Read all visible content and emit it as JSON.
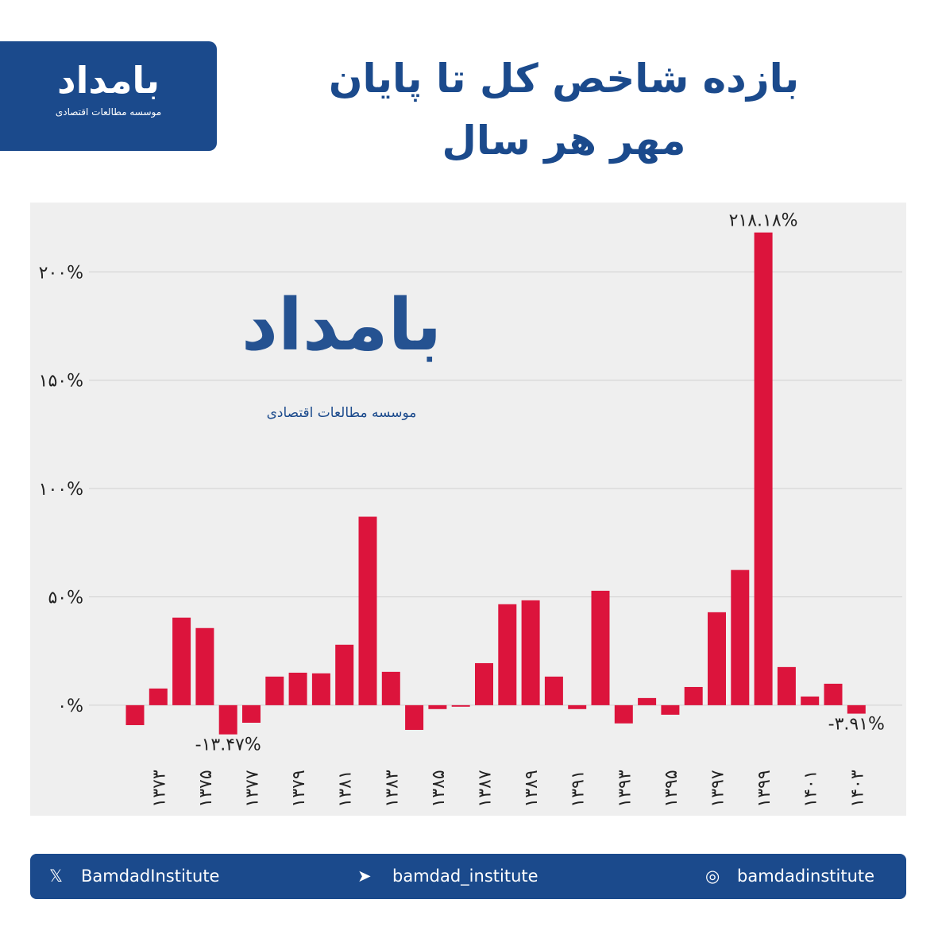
{
  "logo": {
    "name": "بامداد",
    "subtitle": "موسسه مطالعات اقتصادی"
  },
  "footer": {
    "x": "BamdadInstitute",
    "telegram": "bamdad_institute",
    "instagram": "bamdadinstitute"
  },
  "chart_data": {
    "type": "bar",
    "title": "بازده شاخص کل تا پایان مهر هر سال",
    "categories": [
      null,
      "۱۳۷۳",
      null,
      "۱۳۷۵",
      null,
      "۱۳۷۷",
      null,
      "۱۳۷۹",
      null,
      "۱۳۸۱",
      null,
      "۱۳۸۳",
      null,
      "۱۳۸۵",
      null,
      "۱۳۸۷",
      null,
      "۱۳۸۹",
      null,
      "۱۳۹۱",
      null,
      "۱۳۹۳",
      null,
      "۱۳۹۵",
      null,
      "۱۳۹۷",
      null,
      "۱۳۹۹",
      null,
      "۱۴۰۱",
      null,
      "۱۴۰۳"
    ],
    "values": [
      -9.2,
      7.7,
      40.4,
      35.6,
      -13.47,
      -8.1,
      13.2,
      15.0,
      14.7,
      27.9,
      87.0,
      15.4,
      -11.4,
      -1.8,
      -0.7,
      19.4,
      46.6,
      48.4,
      13.2,
      -1.8,
      52.8,
      -8.4,
      3.3,
      -4.4,
      8.4,
      42.9,
      62.4,
      218.18,
      17.6,
      4.0,
      9.9,
      -3.91
    ],
    "value_labels": [
      null,
      null,
      null,
      null,
      "-۱۳.۴۷%",
      null,
      null,
      null,
      null,
      null,
      null,
      null,
      null,
      null,
      null,
      null,
      null,
      null,
      null,
      null,
      null,
      null,
      null,
      null,
      null,
      null,
      null,
      "۲۱۸.۱۸%",
      null,
      null,
      null,
      "-۳.۹۱%"
    ],
    "color": "#dc143c",
    "ylim": [
      -51,
      232
    ],
    "yticks": [
      {
        "value": 0,
        "label": "۰%"
      },
      {
        "value": 50,
        "label": "۵۰%"
      },
      {
        "value": 100,
        "label": "۱۰۰%"
      },
      {
        "value": 150,
        "label": "۱۵۰%"
      },
      {
        "value": 200,
        "label": "۲۰۰%"
      }
    ],
    "grid": true
  }
}
